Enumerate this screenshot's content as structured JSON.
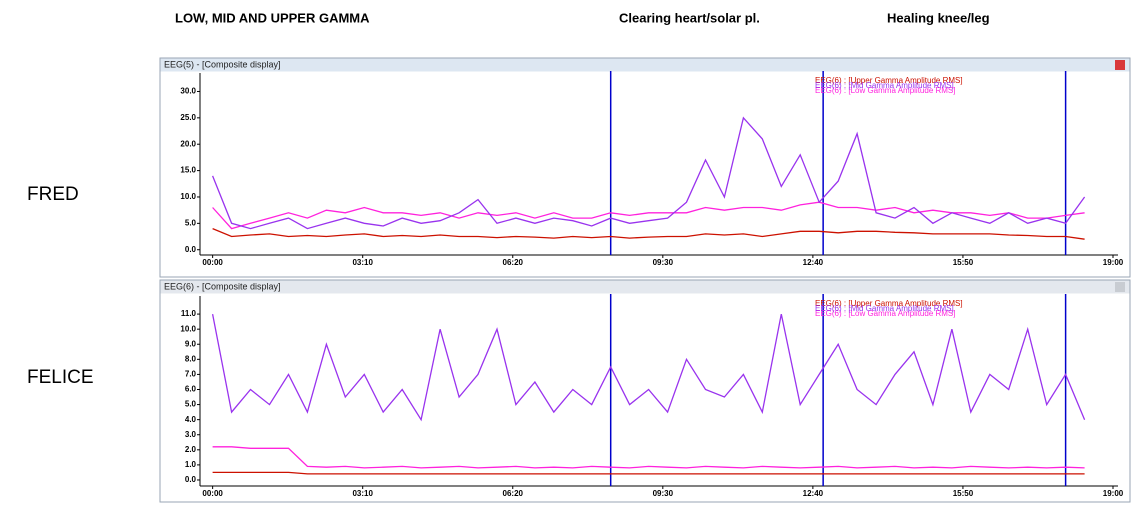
{
  "headings": [
    "LOW, MID AND UPPER GAMMA",
    "Clearing heart/solar pl.",
    "Healing knee/leg"
  ],
  "subjects": [
    "FRED",
    "FELICE"
  ],
  "chart_data": [
    {
      "type": "line",
      "window_title": "EEG(5) - [Composite display]",
      "x": [
        0,
        24,
        48,
        72,
        96,
        120,
        144,
        168,
        192,
        216,
        240,
        264,
        288,
        312,
        336,
        360,
        384,
        408,
        432,
        456,
        480,
        504,
        528,
        552,
        576,
        600,
        624,
        648,
        672,
        696,
        720,
        744,
        768,
        792,
        816,
        840,
        864,
        888,
        912,
        936,
        960,
        984,
        1008,
        1032,
        1056,
        1080,
        1104
      ],
      "xlim": [
        -16,
        1140
      ],
      "xticks": [
        {
          "value": 0,
          "label": "00:00"
        },
        {
          "value": 190,
          "label": "03:10"
        },
        {
          "value": 380,
          "label": "06:20"
        },
        {
          "value": 570,
          "label": "09:30"
        },
        {
          "value": 760,
          "label": "12:40"
        },
        {
          "value": 950,
          "label": "15:50"
        },
        {
          "value": 1140,
          "label": "19:00"
        }
      ],
      "ylim": [
        -1,
        33.5
      ],
      "yticks": [
        {
          "value": 0,
          "label": "0.0"
        },
        {
          "value": 5,
          "label": "5.0"
        },
        {
          "value": 10,
          "label": "10.0"
        },
        {
          "value": 15,
          "label": "15.0"
        },
        {
          "value": 20,
          "label": "20.0"
        },
        {
          "value": 25,
          "label": "25.0"
        },
        {
          "value": 30,
          "label": "30.0"
        }
      ],
      "event_markers": [
        504,
        773,
        1080
      ],
      "marker_color": "#0000cc",
      "series": [
        {
          "name": "EEG(6) : [Upper Gamma Amplitude RMS]",
          "color": "#cc1100",
          "values": [
            4,
            2.5,
            2.8,
            3,
            2.5,
            2.7,
            2.5,
            2.8,
            3,
            2.5,
            2.7,
            2.5,
            2.8,
            2.5,
            2.5,
            2.3,
            2.5,
            2.4,
            2.2,
            2.5,
            2.3,
            2.5,
            2.2,
            2.4,
            2.5,
            2.5,
            3,
            2.8,
            3,
            2.5,
            3,
            3.5,
            3.5,
            3.2,
            3.5,
            3.5,
            3.3,
            3.2,
            3,
            3,
            3,
            3,
            2.8,
            2.7,
            2.5,
            2.5,
            2
          ]
        },
        {
          "name": "EEG(6) : [Mid Gamma Amplitude RMS]",
          "color": "#9933ee",
          "values": [
            14,
            5,
            4,
            5,
            6,
            4,
            5,
            6,
            5,
            4.5,
            6,
            5,
            5.5,
            7,
            9.5,
            5,
            6,
            5,
            6,
            5.5,
            4.5,
            6,
            5,
            5.5,
            6,
            9,
            17,
            10,
            25,
            21,
            12,
            18,
            9,
            13,
            22,
            7,
            6,
            8,
            5,
            7,
            6,
            5,
            7,
            5,
            6,
            5,
            10
          ]
        },
        {
          "name": "EEG(6) : [Low Gamma Amplitude RMS]",
          "color": "#ff22dd",
          "values": [
            8,
            4,
            5,
            6,
            7,
            6,
            7.5,
            7,
            8,
            7,
            7,
            6.5,
            7,
            6,
            7,
            6.5,
            7,
            6,
            7,
            6,
            6,
            7,
            6.5,
            7,
            7,
            7,
            8,
            7.5,
            8,
            8,
            7.5,
            8.5,
            9,
            8,
            8,
            7.5,
            8,
            7,
            7.5,
            7,
            7,
            6.5,
            7,
            6,
            6,
            6.5,
            7
          ]
        }
      ]
    },
    {
      "type": "line",
      "window_title": "EEG(6) - [Composite display]",
      "x": [
        0,
        24,
        48,
        72,
        96,
        120,
        144,
        168,
        192,
        216,
        240,
        264,
        288,
        312,
        336,
        360,
        384,
        408,
        432,
        456,
        480,
        504,
        528,
        552,
        576,
        600,
        624,
        648,
        672,
        696,
        720,
        744,
        768,
        792,
        816,
        840,
        864,
        888,
        912,
        936,
        960,
        984,
        1008,
        1032,
        1056,
        1080,
        1104
      ],
      "xlim": [
        -16,
        1140
      ],
      "xticks": [
        {
          "value": 0,
          "label": "00:00"
        },
        {
          "value": 190,
          "label": "03:10"
        },
        {
          "value": 380,
          "label": "06:20"
        },
        {
          "value": 570,
          "label": "09:30"
        },
        {
          "value": 760,
          "label": "12:40"
        },
        {
          "value": 950,
          "label": "15:50"
        },
        {
          "value": 1140,
          "label": "19:00"
        }
      ],
      "ylim": [
        -0.4,
        12.2
      ],
      "yticks": [
        {
          "value": 0,
          "label": "0.0"
        },
        {
          "value": 1,
          "label": "1.0"
        },
        {
          "value": 2,
          "label": "2.0"
        },
        {
          "value": 3,
          "label": "3.0"
        },
        {
          "value": 4,
          "label": "4.0"
        },
        {
          "value": 5,
          "label": "5.0"
        },
        {
          "value": 6,
          "label": "6.0"
        },
        {
          "value": 7,
          "label": "7.0"
        },
        {
          "value": 8,
          "label": "8.0"
        },
        {
          "value": 9,
          "label": "9.0"
        },
        {
          "value": 10,
          "label": "10.0"
        },
        {
          "value": 11,
          "label": "11.0"
        }
      ],
      "event_markers": [
        504,
        773,
        1080
      ],
      "marker_color": "#0000cc",
      "series": [
        {
          "name": "EEG(6) : [Upper Gamma Amplitude RMS]",
          "color": "#cc1100",
          "values": [
            0.5,
            0.5,
            0.5,
            0.5,
            0.5,
            0.4,
            0.4,
            0.4,
            0.4,
            0.4,
            0.4,
            0.4,
            0.4,
            0.4,
            0.4,
            0.4,
            0.4,
            0.4,
            0.4,
            0.4,
            0.4,
            0.4,
            0.4,
            0.4,
            0.4,
            0.4,
            0.4,
            0.4,
            0.4,
            0.4,
            0.4,
            0.4,
            0.4,
            0.4,
            0.4,
            0.4,
            0.4,
            0.4,
            0.4,
            0.4,
            0.4,
            0.4,
            0.4,
            0.4,
            0.4,
            0.4,
            0.4
          ]
        },
        {
          "name": "EEG(6) : [Mid Gamma Amplitude RMS]",
          "color": "#9933ee",
          "values": [
            11,
            4.5,
            6,
            5,
            7,
            4.5,
            9,
            5.5,
            7,
            4.5,
            6,
            4,
            10,
            5.5,
            7,
            10,
            5,
            6.5,
            4.5,
            6,
            5,
            7.5,
            5,
            6,
            4.5,
            8,
            6,
            5.5,
            7,
            4.5,
            11,
            5,
            7,
            9,
            6,
            5,
            7,
            8.5,
            5,
            10,
            4.5,
            7,
            6,
            10,
            5,
            7,
            4
          ]
        },
        {
          "name": "EEG(6) : [Low Gamma Amplitude RMS]",
          "color": "#ff22dd",
          "values": [
            2.2,
            2.2,
            2.1,
            2.1,
            2.1,
            0.9,
            0.85,
            0.9,
            0.8,
            0.85,
            0.9,
            0.8,
            0.85,
            0.9,
            0.8,
            0.85,
            0.9,
            0.8,
            0.85,
            0.8,
            0.9,
            0.85,
            0.8,
            0.9,
            0.85,
            0.8,
            0.9,
            0.85,
            0.8,
            0.9,
            0.85,
            0.8,
            0.85,
            0.9,
            0.8,
            0.85,
            0.9,
            0.8,
            0.85,
            0.8,
            0.9,
            0.85,
            0.8,
            0.85,
            0.8,
            0.85,
            0.8
          ]
        }
      ]
    }
  ]
}
